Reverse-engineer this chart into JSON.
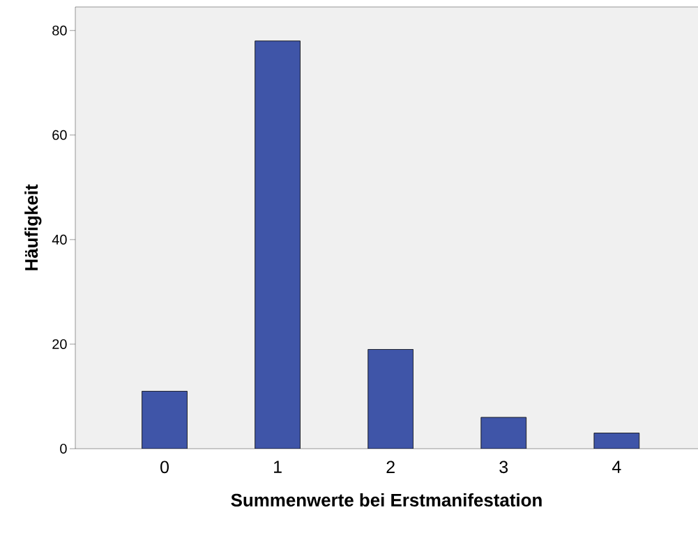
{
  "chart_data": {
    "type": "bar",
    "xlabel": "Summenwerte bei Erstmanifestation",
    "ylabel": "Häufigkeit",
    "categories": [
      "0",
      "1",
      "2",
      "3",
      "4"
    ],
    "values": [
      11,
      78,
      19,
      6,
      3
    ],
    "color": "#3f55a8",
    "ylim": [
      0,
      84.5
    ],
    "yticks": [
      0,
      20,
      40,
      60,
      80
    ],
    "grid": false
  }
}
